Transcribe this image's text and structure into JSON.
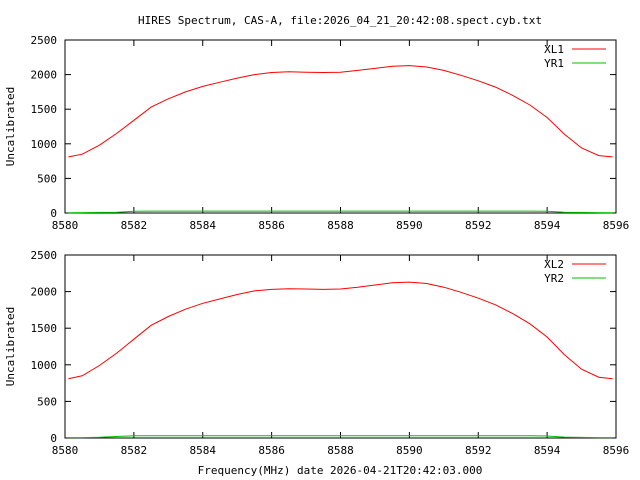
{
  "title": "HIRES Spectrum, CAS-A, file:2026_04_21_20:42:08.spect.cyb.txt",
  "xlabel_bottom": "Frequency(MHz) date 2026-04-21T20:42:03.000",
  "chart_data": [
    {
      "type": "line",
      "ylabel": "Uncalibrated",
      "xlim": [
        8580,
        8596
      ],
      "ylim": [
        0,
        2500
      ],
      "xticks": [
        "8580",
        "8582",
        "8584",
        "8586",
        "8588",
        "8590",
        "8592",
        "8594",
        "8596"
      ],
      "yticks": [
        "0",
        "500",
        "1000",
        "1500",
        "2000",
        "2500"
      ],
      "grid": false,
      "legend_position": "top-right",
      "x": [
        8580.1,
        8580.5,
        8581.0,
        8581.5,
        8582.0,
        8582.5,
        8583.0,
        8583.5,
        8584.0,
        8584.5,
        8585.0,
        8585.5,
        8586.0,
        8586.5,
        8587.0,
        8587.5,
        8588.0,
        8588.5,
        8589.0,
        8589.5,
        8590.0,
        8590.5,
        8591.0,
        8591.5,
        8592.0,
        8592.5,
        8593.0,
        8593.5,
        8594.0,
        8594.5,
        8595.0,
        8595.5,
        8595.9
      ],
      "series": [
        {
          "name": "XL1",
          "color": "#ff0000",
          "values": [
            810,
            850,
            980,
            1150,
            1340,
            1530,
            1650,
            1750,
            1830,
            1890,
            1950,
            2000,
            2030,
            2040,
            2035,
            2030,
            2035,
            2060,
            2090,
            2120,
            2130,
            2110,
            2060,
            1990,
            1910,
            1820,
            1700,
            1560,
            1380,
            1140,
            940,
            830,
            810
          ]
        },
        {
          "name": "YR1",
          "color": "#00c000",
          "values": [
            5,
            6,
            8,
            12,
            25,
            28,
            28,
            28,
            28,
            28,
            28,
            28,
            28,
            28,
            28,
            28,
            28,
            28,
            28,
            28,
            28,
            28,
            28,
            28,
            28,
            28,
            28,
            28,
            25,
            12,
            8,
            6,
            5
          ]
        }
      ]
    },
    {
      "type": "line",
      "ylabel": "Uncalibrated",
      "xlim": [
        8580,
        8596
      ],
      "ylim": [
        0,
        2500
      ],
      "xticks": [
        "8580",
        "8582",
        "8584",
        "8586",
        "8588",
        "8590",
        "8592",
        "8594",
        "8596"
      ],
      "yticks": [
        "0",
        "500",
        "1000",
        "1500",
        "2000",
        "2500"
      ],
      "grid": false,
      "legend_position": "top-right",
      "x": [
        8580.1,
        8580.5,
        8581.0,
        8581.5,
        8582.0,
        8582.5,
        8583.0,
        8583.5,
        8584.0,
        8584.5,
        8585.0,
        8585.5,
        8586.0,
        8586.5,
        8587.0,
        8587.5,
        8588.0,
        8588.5,
        8589.0,
        8589.5,
        8590.0,
        8590.5,
        8591.0,
        8591.5,
        8592.0,
        8592.5,
        8593.0,
        8593.5,
        8594.0,
        8594.5,
        8595.0,
        8595.5,
        8595.9
      ],
      "series": [
        {
          "name": "XL2",
          "color": "#ff0000",
          "values": [
            810,
            850,
            990,
            1160,
            1350,
            1540,
            1660,
            1760,
            1840,
            1900,
            1960,
            2010,
            2030,
            2040,
            2035,
            2030,
            2035,
            2060,
            2090,
            2120,
            2130,
            2110,
            2060,
            1990,
            1910,
            1820,
            1700,
            1560,
            1380,
            1140,
            940,
            830,
            810
          ]
        },
        {
          "name": "YR2",
          "color": "#00c000",
          "values": [
            5,
            6,
            10,
            20,
            30,
            30,
            30,
            30,
            30,
            30,
            30,
            30,
            30,
            30,
            30,
            30,
            30,
            30,
            30,
            30,
            30,
            30,
            30,
            30,
            30,
            30,
            30,
            30,
            28,
            12,
            8,
            6,
            5
          ]
        }
      ]
    }
  ]
}
